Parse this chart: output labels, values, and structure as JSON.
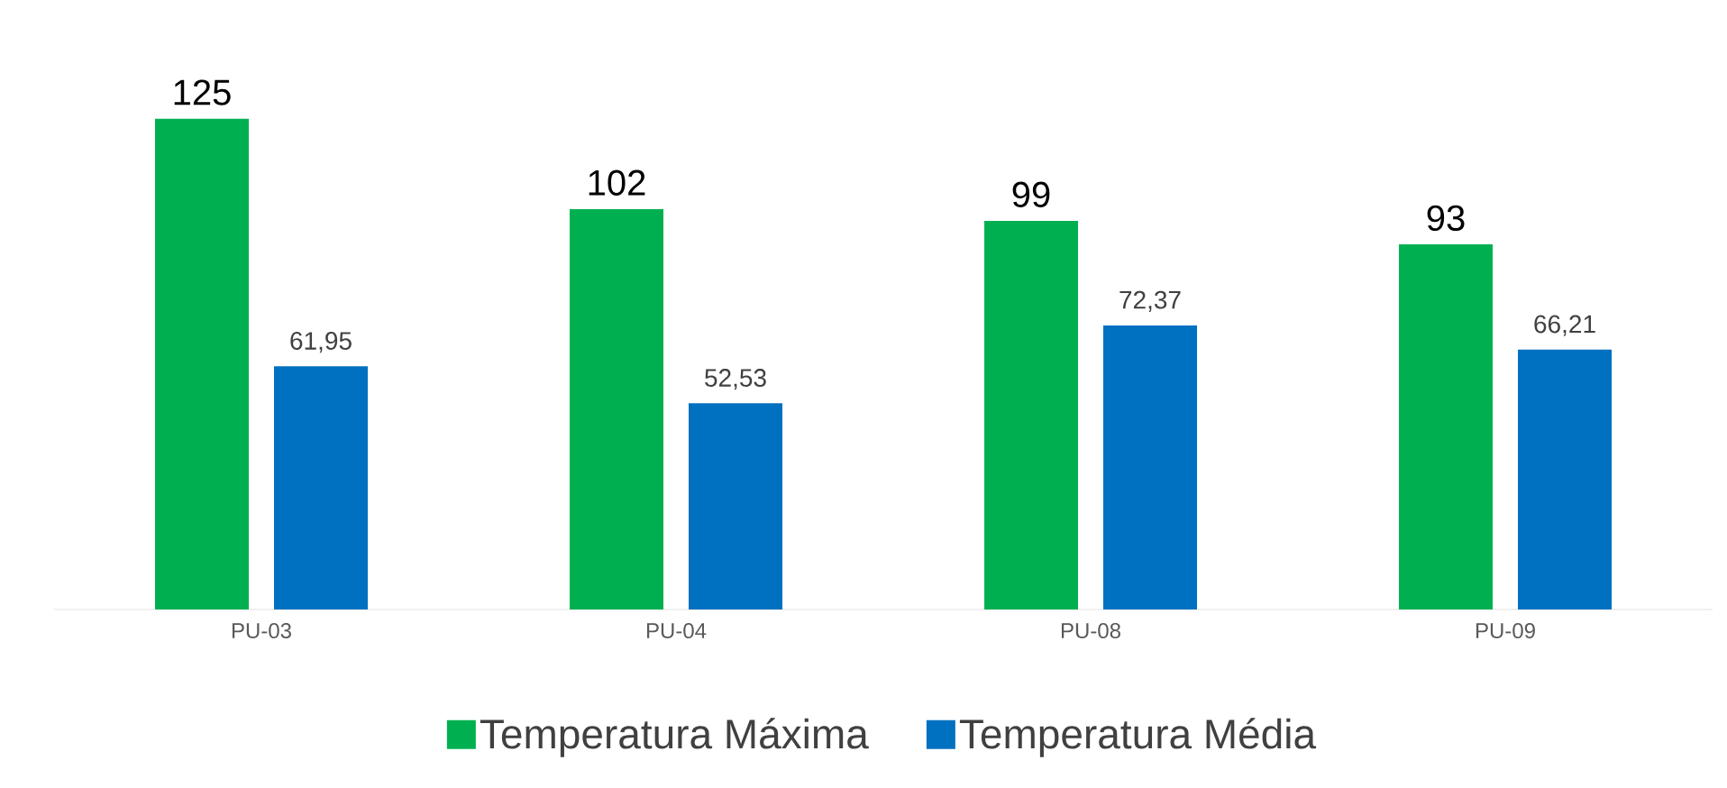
{
  "chart_data": {
    "type": "bar",
    "categories": [
      "PU-03",
      "PU-04",
      "PU-08",
      "PU-09"
    ],
    "series": [
      {
        "name": "Temperatura Máxima",
        "color": "#00b050",
        "values": [
          125,
          102,
          99,
          93
        ],
        "value_labels": [
          "125",
          "102",
          "99",
          "93"
        ]
      },
      {
        "name": "Temperatura Média",
        "color": "#0070c0",
        "values": [
          61.95,
          52.53,
          72.37,
          66.21
        ],
        "value_labels": [
          "61,95",
          "52,53",
          "72,37",
          "66,21"
        ]
      }
    ],
    "legend": "bottom"
  }
}
